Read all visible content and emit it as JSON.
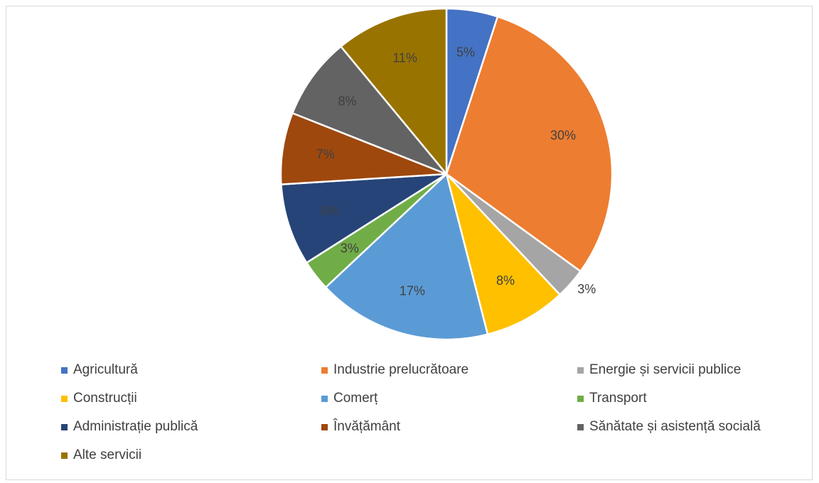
{
  "chart_data": {
    "type": "pie",
    "title": "",
    "legend_position": "bottom",
    "slices": [
      {
        "label": "Agricultură",
        "value": 5,
        "display": "5%",
        "color": "#4472C4"
      },
      {
        "label": "Industrie prelucrătoare",
        "value": 30,
        "display": "30%",
        "color": "#ED7D31"
      },
      {
        "label": "Energie și servicii publice",
        "value": 3,
        "display": "3%",
        "color": "#A5A5A5"
      },
      {
        "label": "Construcții",
        "value": 8,
        "display": "8%",
        "color": "#FFC000"
      },
      {
        "label": "Comerț",
        "value": 17,
        "display": "17%",
        "color": "#5B9BD5"
      },
      {
        "label": "Transport",
        "value": 3,
        "display": "3%",
        "color": "#70AD47"
      },
      {
        "label": "Administrație publică",
        "value": 8,
        "display": "8%",
        "color": "#264478"
      },
      {
        "label": "Învățământ",
        "value": 7,
        "display": "7%",
        "color": "#9E480E"
      },
      {
        "label": "Sănătate și asistență socială",
        "value": 8,
        "display": "8%",
        "color": "#636363"
      },
      {
        "label": "Alte servicii",
        "value": 11,
        "display": "11%",
        "color": "#997300"
      }
    ]
  }
}
